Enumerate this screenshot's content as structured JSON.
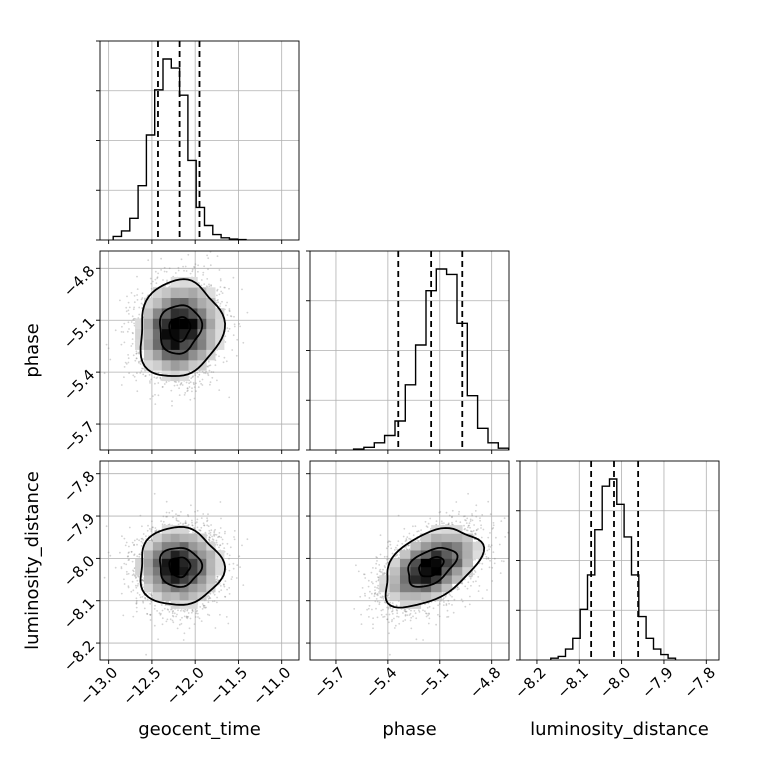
{
  "chart_data": {
    "type": "corner",
    "parameters": [
      {
        "name": "geocent_time",
        "axis_label": "geocent_time",
        "range": [
          -13.1,
          -10.8
        ],
        "ticks": [
          -13.0,
          -12.5,
          -12.0,
          -11.5,
          -11.0
        ],
        "tick_labels": [
          "−13.0",
          "−12.5",
          "−12.0",
          "−11.5",
          "−11.0"
        ],
        "quantiles": [
          -12.43,
          -12.18,
          -11.95
        ],
        "hist_counts": [
          2,
          5,
          12,
          30,
          58,
          83,
          100,
          95,
          80,
          44,
          18,
          8,
          3,
          1.2,
          0.5,
          0.2
        ]
      },
      {
        "name": "phase",
        "axis_label": "phase",
        "range": [
          -5.85,
          -4.7
        ],
        "ticks": [
          -5.7,
          -5.4,
          -5.1,
          -4.8
        ],
        "tick_labels": [
          "−5.7",
          "−5.4",
          "−5.1",
          "−4.8"
        ],
        "quantiles": [
          -5.34,
          -5.15,
          -4.97
        ],
        "hist_counts": [
          0.5,
          1.5,
          4,
          8,
          16,
          36,
          58,
          88,
          100,
          97,
          70,
          30,
          12,
          4,
          1
        ]
      },
      {
        "name": "luminosity_distance",
        "axis_label": "luminosity_distance",
        "range": [
          -8.24,
          -7.77
        ],
        "ticks": [
          -8.2,
          -8.1,
          -8.0,
          -7.9,
          -7.8
        ],
        "tick_labels": [
          "−8.2",
          "−8.1",
          "−8.0",
          "−7.9",
          "−7.8"
        ],
        "quantiles": [
          -8.072,
          -8.018,
          -7.961
        ],
        "hist_counts": [
          1,
          2,
          6,
          12,
          28,
          47,
          72,
          96,
          100,
          86,
          68,
          47,
          24,
          12,
          6,
          3,
          1
        ]
      }
    ],
    "samples": {
      "count": 3000,
      "means": [
        -12.18,
        -5.15,
        -8.02
      ],
      "sds": [
        0.24,
        0.14,
        0.046
      ],
      "correlation": {
        "0-1": 0.1,
        "0-2": 0.0,
        "1-2": 0.45
      }
    },
    "contour_levels": [
      0.393,
      0.865,
      0.989
    ],
    "grid": true,
    "colors": {
      "line": "#000000",
      "grid": "#b0b0b0",
      "samples": "#808080"
    }
  }
}
